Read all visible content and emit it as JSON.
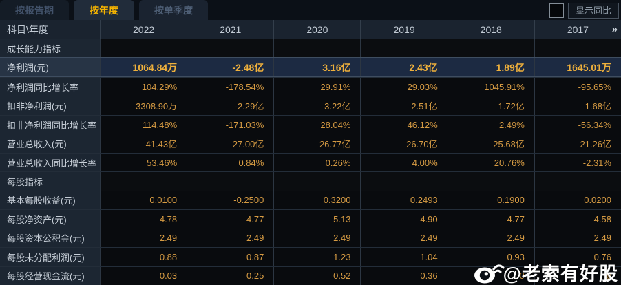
{
  "tabs": [
    {
      "label": "按报告期",
      "active": false
    },
    {
      "label": "按年度",
      "active": true
    },
    {
      "label": "按单季度",
      "active": false
    }
  ],
  "controls": {
    "show_yoy_label": "显示同比",
    "checkbox_checked": false
  },
  "table": {
    "corner_header": "科目\\年度",
    "year_columns": [
      "2022",
      "2021",
      "2020",
      "2019",
      "2018",
      "2017"
    ],
    "more_icon": "»",
    "rows": [
      {
        "type": "section",
        "label": "成长能力指标"
      },
      {
        "type": "data",
        "highlight": true,
        "label": "净利润(元)",
        "values": [
          "1064.84万",
          "-2.48亿",
          "3.16亿",
          "2.43亿",
          "1.89亿",
          "1645.01万"
        ]
      },
      {
        "type": "data",
        "label": "净利润同比增长率",
        "values": [
          "104.29%",
          "-178.54%",
          "29.91%",
          "29.03%",
          "1045.91%",
          "-95.65%"
        ]
      },
      {
        "type": "data",
        "label": "扣非净利润(元)",
        "values": [
          "3308.90万",
          "-2.29亿",
          "3.22亿",
          "2.51亿",
          "1.72亿",
          "1.68亿"
        ]
      },
      {
        "type": "data",
        "label": "扣非净利润同比增长率",
        "values": [
          "114.48%",
          "-171.03%",
          "28.04%",
          "46.12%",
          "2.49%",
          "-56.34%"
        ]
      },
      {
        "type": "data",
        "label": "营业总收入(元)",
        "values": [
          "41.43亿",
          "27.00亿",
          "26.77亿",
          "26.70亿",
          "25.68亿",
          "21.26亿"
        ]
      },
      {
        "type": "data",
        "label": "营业总收入同比增长率",
        "values": [
          "53.46%",
          "0.84%",
          "0.26%",
          "4.00%",
          "20.76%",
          "-2.31%"
        ]
      },
      {
        "type": "section",
        "label": "每股指标"
      },
      {
        "type": "data",
        "label": "基本每股收益(元)",
        "values": [
          "0.0100",
          "-0.2500",
          "0.3200",
          "0.2493",
          "0.1900",
          "0.0200"
        ]
      },
      {
        "type": "data",
        "label": "每股净资产(元)",
        "values": [
          "4.78",
          "4.77",
          "5.13",
          "4.90",
          "4.77",
          "4.58"
        ]
      },
      {
        "type": "data",
        "label": "每股资本公积金(元)",
        "values": [
          "2.49",
          "2.49",
          "2.49",
          "2.49",
          "2.49",
          "2.49"
        ]
      },
      {
        "type": "data",
        "label": "每股未分配利润(元)",
        "values": [
          "0.88",
          "0.87",
          "1.23",
          "1.04",
          "0.93",
          "0.76"
        ]
      },
      {
        "type": "data",
        "label": "每股经营现金流(元)",
        "values": [
          "0.03",
          "0.25",
          "0.52",
          "0.36",
          "0",
          "9"
        ]
      }
    ]
  },
  "watermark": {
    "text": "@老索有好股",
    "icon": "weibo-icon"
  },
  "colors": {
    "accent_gold": "#f7b500",
    "value_gold": "#d69b43",
    "highlight_value_gold": "#eeb03c",
    "highlight_row_bg": "#1c2a42",
    "label_col_bg": "#1c2632",
    "data_cell_bg": "#090b0e",
    "header_bg": "#1a232f",
    "page_bg": "#0b1017"
  }
}
